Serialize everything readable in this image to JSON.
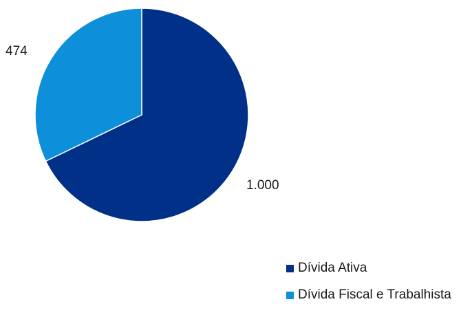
{
  "chart_data": {
    "type": "pie",
    "start": "12 o'clock",
    "direction": "clockwise",
    "slices": [
      {
        "label": "Dívida Ativa",
        "value": 1000,
        "value_label": "1.000",
        "color": "#003087"
      },
      {
        "label": "Dívida Fiscal e Trabalhista",
        "value": 474,
        "value_label": "474",
        "color": "#0d8fd9"
      }
    ],
    "legend_position": "bottom-right"
  }
}
